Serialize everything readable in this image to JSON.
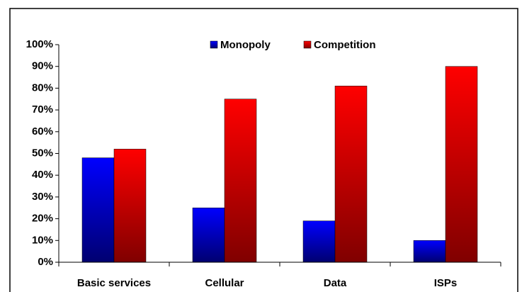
{
  "chart_data": {
    "type": "bar",
    "categories": [
      "Basic services",
      "Cellular",
      "Data",
      "ISPs"
    ],
    "series": [
      {
        "name": "Monopoly",
        "color": "#0000ff",
        "values": [
          48,
          25,
          19,
          10
        ]
      },
      {
        "name": "Competition",
        "color": "#ff0000",
        "values": [
          52,
          75,
          81,
          90
        ]
      }
    ],
    "ylim": [
      0,
      100
    ],
    "yticks": [
      {
        "value": 0,
        "label": "0%"
      },
      {
        "value": 10,
        "label": "10%"
      },
      {
        "value": 20,
        "label": "20%"
      },
      {
        "value": 30,
        "label": "30%"
      },
      {
        "value": 40,
        "label": "40%"
      },
      {
        "value": 50,
        "label": "50%"
      },
      {
        "value": 60,
        "label": "60%"
      },
      {
        "value": 70,
        "label": "70%"
      },
      {
        "value": 80,
        "label": "80%"
      },
      {
        "value": 90,
        "label": "90%"
      },
      {
        "value": 100,
        "label": "100%"
      }
    ],
    "grid": false,
    "legend": "top"
  }
}
